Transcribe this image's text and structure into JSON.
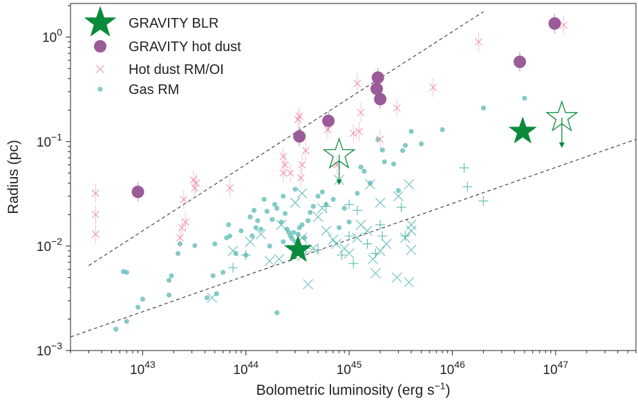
{
  "chart_data": {
    "type": "scatter",
    "x_scale": "log",
    "y_scale": "log",
    "xlim": [
      2e+42,
      6e+47
    ],
    "ylim": [
      0.001,
      2.1
    ],
    "xlabel": "Bolometric luminosity (erg s",
    "xlabel_sup": "−1",
    "xlabel_close": ")",
    "ylabel": "Radius (pc)",
    "x_ticks": [
      {
        "value": 1e+43,
        "base": "10",
        "exp": "43"
      },
      {
        "value": 1e+44,
        "base": "10",
        "exp": "44"
      },
      {
        "value": 1e+45,
        "base": "10",
        "exp": "45"
      },
      {
        "value": 1e+46,
        "base": "10",
        "exp": "46"
      },
      {
        "value": 1e+47,
        "base": "10",
        "exp": "47"
      }
    ],
    "y_ticks": [
      {
        "value": 0.001,
        "base": "10",
        "exp": "−3"
      },
      {
        "value": 0.01,
        "base": "10",
        "exp": "−2"
      },
      {
        "value": 0.1,
        "base": "10",
        "exp": "−1"
      },
      {
        "value": 1,
        "base": "10",
        "exp": "0"
      }
    ],
    "legend_position": "top-left",
    "legend": [
      {
        "label": "GRAVITY BLR",
        "marker": "filled-star",
        "color": "#0b8a3c"
      },
      {
        "label": "GRAVITY hot dust",
        "marker": "circle",
        "color": "#9b5a98"
      },
      {
        "label": "Hot dust RM/OI",
        "marker": "x",
        "color": "#f08cac"
      },
      {
        "label": "Gas RM",
        "marker": "dot",
        "color": "#5ab9b4"
      }
    ],
    "reference_lines": [
      {
        "x": [
          3e+42,
          2e+46
        ],
        "y": [
          0.0065,
          1.75
        ],
        "style": "dashed",
        "color": "#222222"
      },
      {
        "x": [
          2e+42,
          6e+47
        ],
        "y": [
          0.00135,
          0.105
        ],
        "style": "dashed",
        "color": "#222222"
      }
    ],
    "series": [
      {
        "name": "GRAVITY BLR",
        "marker": "filled-star",
        "color": "#0b8a3c",
        "points": [
          [
            3.2e+44,
            0.0092
          ],
          [
            4.8e+46,
            0.125
          ]
        ]
      },
      {
        "name": "GRAVITY BLR upper limits",
        "marker": "open-star",
        "color": "#0b8a3c",
        "upper_limit": true,
        "points": [
          [
            8e+44,
            0.075
          ],
          [
            1.15e+47,
            0.17
          ]
        ]
      },
      {
        "name": "GRAVITY hot dust",
        "marker": "circle",
        "color": "#9b5a98",
        "points": [
          [
            9e+42,
            0.033
          ],
          [
            3.3e+44,
            0.112
          ],
          [
            6.3e+44,
            0.158
          ],
          [
            1.9e+45,
            0.41
          ],
          [
            1.85e+45,
            0.32
          ],
          [
            2e+45,
            0.255
          ],
          [
            4.5e+46,
            0.58
          ],
          [
            9.8e+46,
            1.35
          ]
        ]
      },
      {
        "name": "Hot dust RM/OI",
        "marker": "x",
        "color": "#f08cac",
        "points": [
          [
            3.5e+42,
            0.032
          ],
          [
            3.5e+42,
            0.02
          ],
          [
            3.5e+42,
            0.013
          ],
          [
            2.3e+43,
            0.012
          ],
          [
            2.4e+43,
            0.015
          ],
          [
            2.6e+43,
            0.017
          ],
          [
            2.5e+43,
            0.028
          ],
          [
            3.2e+43,
            0.036
          ],
          [
            3.3e+43,
            0.04
          ],
          [
            3.1e+43,
            0.043
          ],
          [
            7e+43,
            0.036
          ],
          [
            2.3e+44,
            0.05
          ],
          [
            2.4e+44,
            0.06
          ],
          [
            2.3e+44,
            0.072
          ],
          [
            2.7e+44,
            0.05
          ],
          [
            3.2e+44,
            0.163
          ],
          [
            3.3e+44,
            0.175
          ],
          [
            3.5e+44,
            0.06
          ],
          [
            3.4e+44,
            0.045
          ],
          [
            3.8e+44,
            0.082
          ],
          [
            6.2e+44,
            0.13
          ],
          [
            7.6e+44,
            0.06
          ],
          [
            1.1e+45,
            0.12
          ],
          [
            1.2e+45,
            0.36
          ],
          [
            1.3e+45,
            0.19
          ],
          [
            1.25e+45,
            0.125
          ],
          [
            2e+45,
            0.105
          ],
          [
            2.9e+45,
            0.21
          ],
          [
            6.5e+45,
            0.33
          ],
          [
            1.8e+46,
            0.9
          ],
          [
            1.2e+47,
            1.3
          ]
        ]
      },
      {
        "name": "Gas RM",
        "marker": "dot",
        "color": "#5ab9b4",
        "points": [
          [
            5.5e+42,
            0.0016
          ],
          [
            7e+42,
            0.0019
          ],
          [
            7e+42,
            0.0056
          ],
          [
            6.5e+42,
            0.0057
          ],
          [
            9e+42,
            0.0026
          ],
          [
            1e+43,
            0.0031
          ],
          [
            1.8e+43,
            0.0034
          ],
          [
            1.8e+43,
            0.0047
          ],
          [
            1.9e+43,
            0.0052
          ],
          [
            2.2e+43,
            0.0085
          ],
          [
            2.3e+43,
            0.0105
          ],
          [
            3.2e+43,
            0.0101
          ],
          [
            4.2e+43,
            0.0032
          ],
          [
            4.8e+43,
            0.0052
          ],
          [
            5.2e+43,
            0.0035
          ],
          [
            5e+43,
            0.0105
          ],
          [
            6e+43,
            0.0056
          ],
          [
            6.5e+43,
            0.012
          ],
          [
            7e+43,
            0.0125
          ],
          [
            6.8e+43,
            0.016
          ],
          [
            8e+43,
            0.0085
          ],
          [
            9e+43,
            0.014
          ],
          [
            1e+44,
            0.0082
          ],
          [
            1.1e+44,
            0.019
          ],
          [
            1.15e+44,
            0.0125
          ],
          [
            1.2e+44,
            0.022
          ],
          [
            1.25e+44,
            0.015
          ],
          [
            1.3e+44,
            0.0175
          ],
          [
            1.4e+44,
            0.0145
          ],
          [
            1.5e+44,
            0.028
          ],
          [
            1.6e+44,
            0.0215
          ],
          [
            1.7e+44,
            0.01
          ],
          [
            1.8e+44,
            0.018
          ],
          [
            1.9e+44,
            0.025
          ],
          [
            2e+44,
            0.023
          ],
          [
            2e+44,
            0.0023
          ],
          [
            2.2e+44,
            0.017
          ],
          [
            2.3e+44,
            0.011
          ],
          [
            2.3e+44,
            0.03
          ],
          [
            2.4e+44,
            0.0205
          ],
          [
            2.5e+44,
            0.0145
          ],
          [
            2.6e+44,
            0.0135
          ],
          [
            2.7e+44,
            0.0125
          ],
          [
            2.8e+44,
            0.0118
          ],
          [
            2.9e+44,
            0.0135
          ],
          [
            3e+44,
            0.011
          ],
          [
            3e+44,
            0.035
          ],
          [
            3.2e+44,
            0.013
          ],
          [
            3.3e+44,
            0.015
          ],
          [
            3.5e+44,
            0.016
          ],
          [
            3.7e+44,
            0.012
          ],
          [
            4e+44,
            0.0175
          ],
          [
            4.2e+44,
            0.021
          ],
          [
            4.5e+44,
            0.024
          ],
          [
            5e+44,
            0.03
          ],
          [
            5.5e+44,
            0.033
          ],
          [
            6e+44,
            0.025
          ],
          [
            7e+44,
            0.028
          ],
          [
            8e+44,
            0.015
          ],
          [
            9e+44,
            0.023
          ],
          [
            1e+45,
            0.017
          ],
          [
            1.2e+45,
            0.032
          ],
          [
            1.3e+45,
            0.057
          ],
          [
            1.4e+45,
            0.052
          ],
          [
            1.6e+45,
            0.04
          ],
          [
            1.9e+45,
            0.105
          ],
          [
            2.1e+45,
            0.083
          ],
          [
            2.2e+45,
            0.064
          ],
          [
            2.7e+45,
            0.061
          ],
          [
            3e+45,
            0.034
          ],
          [
            3.3e+45,
            0.082
          ],
          [
            3.5e+45,
            0.092
          ],
          [
            4e+45,
            0.125
          ],
          [
            5e+45,
            0.095
          ],
          [
            8e+45,
            0.13
          ],
          [
            2e+46,
            0.21
          ],
          [
            5e+46,
            0.26
          ]
        ]
      },
      {
        "name": "Gas RM (x markers)",
        "marker": "thin-x",
        "color": "#5ab9b4",
        "points": [
          [
            7.5e+43,
            0.009
          ],
          [
            1.1e+44,
            0.011
          ],
          [
            1.4e+44,
            0.013
          ],
          [
            1.7e+44,
            0.0072
          ],
          [
            2.1e+44,
            0.0075
          ],
          [
            2.2e+44,
            0.016
          ],
          [
            3.5e+44,
            0.032
          ],
          [
            3.5e+44,
            0.012
          ],
          [
            4e+44,
            0.0043
          ],
          [
            4.5e+44,
            0.0095
          ],
          [
            5e+44,
            0.019
          ],
          [
            5.5e+44,
            0.023
          ],
          [
            6e+44,
            0.014
          ],
          [
            7e+44,
            0.0115
          ],
          [
            7.5e+44,
            0.0105
          ],
          [
            8e+44,
            0.043
          ],
          [
            9e+44,
            0.0095
          ],
          [
            1e+45,
            0.0085
          ],
          [
            1.2e+45,
            0.012
          ],
          [
            1.3e+45,
            0.016
          ],
          [
            1.5e+45,
            0.014
          ],
          [
            1.6e+45,
            0.039
          ],
          [
            1.7e+45,
            0.0075
          ],
          [
            1.8e+45,
            0.0055
          ],
          [
            2e+45,
            0.009
          ],
          [
            2.3e+45,
            0.0105
          ],
          [
            2.9e+45,
            0.005
          ],
          [
            3.5e+45,
            0.012
          ],
          [
            3.8e+45,
            0.0045
          ],
          [
            3.8e+45,
            0.039
          ],
          [
            4e+45,
            0.0092
          ],
          [
            4e+45,
            0.014
          ],
          [
            4e+45,
            0.016
          ],
          [
            3.5e+44,
            0.008
          ],
          [
            3e+45,
            0.03
          ],
          [
            2e+45,
            0.026
          ],
          [
            3e+44,
            0.026
          ],
          [
            4.7e+43,
            0.0032
          ]
        ]
      },
      {
        "name": "Gas RM (plus markers)",
        "marker": "plus",
        "color": "#5ab9b4",
        "points": [
          [
            7.5e+43,
            0.0062
          ],
          [
            1e+44,
            0.0082
          ],
          [
            3.8e+44,
            0.0095
          ],
          [
            5e+44,
            0.0092
          ],
          [
            8.5e+44,
            0.0082
          ],
          [
            1e+45,
            0.0125
          ],
          [
            1.1e+45,
            0.0068
          ],
          [
            1.2e+45,
            0.022
          ],
          [
            1.5e+45,
            0.0105
          ],
          [
            1.8e+45,
            0.0085
          ],
          [
            2e+45,
            0.016
          ],
          [
            2.1e+45,
            0.0125
          ],
          [
            3.2e+45,
            0.0235
          ],
          [
            3.5e+45,
            0.0125
          ],
          [
            1.3e+46,
            0.056
          ],
          [
            1.4e+46,
            0.037
          ],
          [
            2e+46,
            0.027
          ],
          [
            6e+44,
            0.024
          ],
          [
            1e+45,
            0.025
          ]
        ]
      }
    ]
  }
}
